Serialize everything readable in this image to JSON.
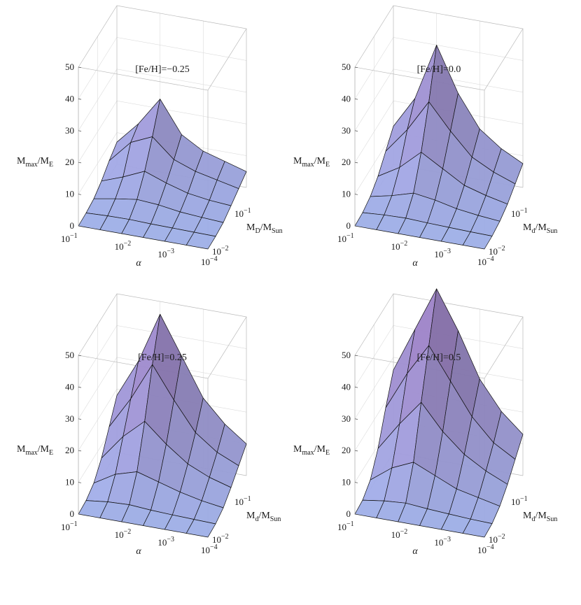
{
  "chart_data": [
    {
      "type": "surface3d",
      "title": "[Fe/H]=−0.25",
      "zlabel": {
        "main": "M",
        "sub": "max",
        "sep": "/M",
        "sub2": "E"
      },
      "xlabel": "α",
      "ylabel": {
        "main": "M",
        "sub": "D",
        "sep": "/M",
        "sub2": "Sun"
      },
      "zticks": [
        "0",
        "10",
        "20",
        "30",
        "40",
        "50"
      ],
      "zlim": [
        0,
        50
      ],
      "xticks": [
        {
          "base": "10",
          "exp": "−1"
        },
        {
          "base": "10",
          "exp": "−2"
        },
        {
          "base": "10",
          "exp": "−3"
        },
        {
          "base": "10",
          "exp": "−4"
        }
      ],
      "yticks": [
        {
          "base": "10",
          "exp": "−2"
        },
        {
          "base": "10",
          "exp": "−1"
        }
      ],
      "alpha": [
        "1e-1",
        "3e-2",
        "1e-2",
        "3e-3",
        "1e-3",
        "3e-4",
        "1e-4"
      ],
      "disk_mass": [
        "1e-2",
        "3e-2",
        "6e-2",
        "1e-1",
        "1.5e-1",
        "2e-1"
      ],
      "z": [
        [
          0,
          0.2,
          0.8,
          2.5,
          5,
          7
        ],
        [
          0,
          0.5,
          2,
          5,
          12,
          14
        ],
        [
          0,
          0.6,
          3,
          8,
          15,
          23
        ],
        [
          0,
          0.4,
          2.5,
          5.5,
          9,
          13
        ],
        [
          0,
          0.3,
          1.5,
          3.5,
          6.5,
          9
        ],
        [
          0,
          0.2,
          1,
          2.5,
          5,
          7
        ],
        [
          0,
          0.1,
          0.6,
          2,
          3.5,
          5
        ]
      ]
    },
    {
      "type": "surface3d",
      "title": "[Fe/H]=0.0",
      "zlabel": {
        "main": "M",
        "sub": "max",
        "sep": "/M",
        "sub2": "E"
      },
      "xlabel": "α",
      "ylabel": {
        "main": "M",
        "sub": "d",
        "sep": "/M",
        "sub2": "Sun"
      },
      "zticks": [
        "0",
        "10",
        "20",
        "30",
        "40",
        "50"
      ],
      "zlim": [
        0,
        50
      ],
      "xticks": [
        {
          "base": "10",
          "exp": "−1"
        },
        {
          "base": "10",
          "exp": "−2"
        },
        {
          "base": "10",
          "exp": "−3"
        },
        {
          "base": "10",
          "exp": "−4"
        }
      ],
      "yticks": [
        {
          "base": "10",
          "exp": "−2"
        },
        {
          "base": "10",
          "exp": "−1"
        }
      ],
      "alpha": [
        "1e-1",
        "3e-2",
        "1e-2",
        "3e-3",
        "1e-3",
        "3e-4",
        "1e-4"
      ],
      "disk_mass": [
        "1e-2",
        "3e-2",
        "6e-2",
        "1e-1",
        "1.5e-1",
        "2e-1"
      ],
      "z": [
        [
          0,
          0.3,
          1.5,
          4,
          8,
          12
        ],
        [
          0,
          0.8,
          3,
          8,
          16,
          22
        ],
        [
          0,
          1,
          5,
          14,
          26,
          40
        ],
        [
          0,
          0.7,
          4,
          10,
          18,
          26
        ],
        [
          0,
          0.5,
          2.5,
          6,
          11,
          16
        ],
        [
          0,
          0.3,
          1.6,
          4,
          7.5,
          11
        ],
        [
          0,
          0.2,
          1,
          2.5,
          5,
          7.5
        ]
      ]
    },
    {
      "type": "surface3d",
      "title": "[Fe/H]=0.25",
      "zlabel": {
        "main": "M",
        "sub": "max",
        "sep": "/M",
        "sub2": "E"
      },
      "xlabel": "α",
      "ylabel": {
        "main": "M",
        "sub": "d",
        "sep": "/M",
        "sub2": "Sun"
      },
      "zticks": [
        "0",
        "10",
        "20",
        "30",
        "40",
        "50"
      ],
      "zlim": [
        0,
        50
      ],
      "xticks": [
        {
          "base": "10",
          "exp": "−1"
        },
        {
          "base": "10",
          "exp": "−2"
        },
        {
          "base": "10",
          "exp": "−3"
        },
        {
          "base": "10",
          "exp": "−4"
        }
      ],
      "yticks": [
        {
          "base": "10",
          "exp": "−2"
        },
        {
          "base": "10",
          "exp": "−1"
        }
      ],
      "alpha": [
        "1e-1",
        "3e-2",
        "1e-2",
        "3e-3",
        "1e-3",
        "3e-4",
        "1e-4"
      ],
      "disk_mass": [
        "1e-2",
        "3e-2",
        "6e-2",
        "1e-1",
        "1.5e-1",
        "2e-1"
      ],
      "z": [
        [
          0,
          0.4,
          2,
          6,
          12,
          18
        ],
        [
          0,
          1.2,
          6,
          14,
          22,
          30
        ],
        [
          0,
          1.5,
          8,
          20,
          34,
          46
        ],
        [
          0,
          1,
          6,
          14,
          24,
          34
        ],
        [
          0,
          0.7,
          4,
          9,
          15,
          22
        ],
        [
          0,
          0.5,
          2.5,
          6,
          10,
          15
        ],
        [
          0,
          0.3,
          1.5,
          4,
          7,
          10
        ]
      ]
    },
    {
      "type": "surface3d",
      "title": "[Fe/H]=0.5",
      "zlabel": {
        "main": "M",
        "sub": "max",
        "sep": "/M",
        "sub2": "E"
      },
      "xlabel": "α",
      "ylabel": {
        "main": "M",
        "sub": "d",
        "sep": "/M",
        "sub2": "Sun"
      },
      "zticks": [
        "0",
        "10",
        "20",
        "30",
        "40",
        "50"
      ],
      "zlim": [
        0,
        50
      ],
      "xticks": [
        {
          "base": "10",
          "exp": "−1"
        },
        {
          "base": "10",
          "exp": "−2"
        },
        {
          "base": "10",
          "exp": "−3"
        },
        {
          "base": "10",
          "exp": "−4"
        }
      ],
      "yticks": [
        {
          "base": "10",
          "exp": "−2"
        },
        {
          "base": "10",
          "exp": "−1"
        }
      ],
      "alpha": [
        "1e-1",
        "3e-2",
        "1e-2",
        "3e-3",
        "1e-3",
        "3e-4",
        "1e-4"
      ],
      "disk_mass": [
        "1e-2",
        "3e-2",
        "6e-2",
        "1e-1",
        "1.5e-1",
        "2e-1"
      ],
      "z": [
        [
          0,
          0.5,
          3,
          9,
          18,
          26
        ],
        [
          0,
          1.5,
          8,
          18,
          30,
          40
        ],
        [
          0,
          2,
          11,
          26,
          40,
          54
        ],
        [
          0,
          1.4,
          8,
          18,
          30,
          42
        ],
        [
          0,
          1,
          5,
          12,
          20,
          28
        ],
        [
          0,
          0.6,
          3.5,
          8,
          13,
          19
        ],
        [
          0,
          0.4,
          2,
          5,
          9,
          13
        ]
      ]
    }
  ]
}
